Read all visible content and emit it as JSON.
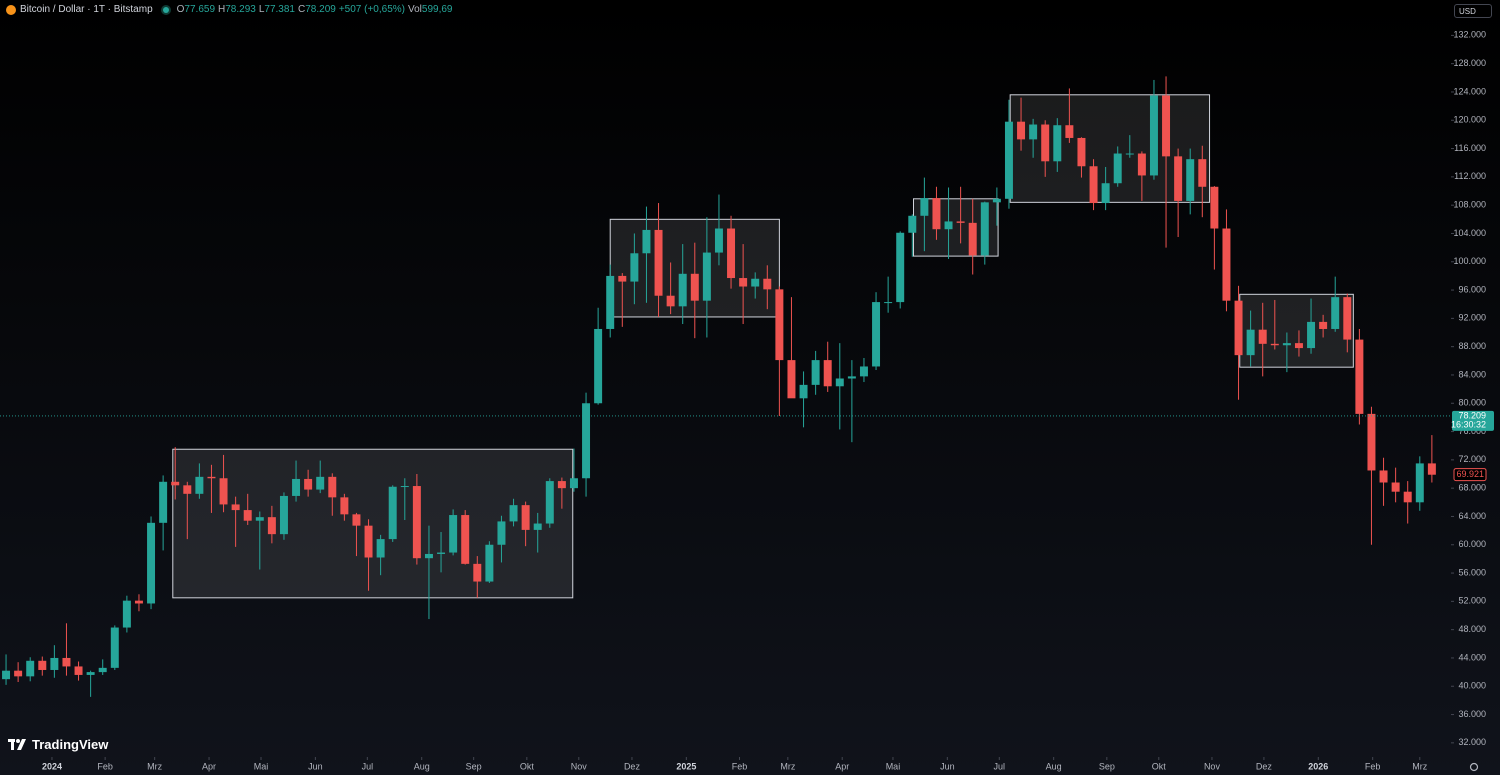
{
  "header": {
    "symbol": "Bitcoin / Dollar · 1T · Bitstamp",
    "quote": [
      {
        "key": "O",
        "value": "77.659"
      },
      {
        "key": "H",
        "value": "78.293"
      },
      {
        "key": "L",
        "value": "77.381"
      },
      {
        "key": "C",
        "value": "78.209"
      },
      {
        "key": "",
        "value": "+507 (+0,65%)"
      },
      {
        "key": "Vol",
        "value": "599,69"
      }
    ],
    "currency": "USD",
    "brand": "TradingView"
  },
  "chart_data": {
    "type": "candlestick",
    "up_color": "#26a69a",
    "down_color": "#ef5350",
    "grid": false,
    "price_scale": "right",
    "xlim": [
      -0.5,
      119.5
    ],
    "ylim": [
      30000,
      137000
    ],
    "xticks": [
      {
        "value": 3.8,
        "label": "2024"
      },
      {
        "value": 8.2,
        "label": "Feb"
      },
      {
        "value": 12.3,
        "label": "Mrz"
      },
      {
        "value": 16.8,
        "label": "Apr"
      },
      {
        "value": 21.1,
        "label": "Mai"
      },
      {
        "value": 25.6,
        "label": "Jun"
      },
      {
        "value": 29.9,
        "label": "Jul"
      },
      {
        "value": 34.4,
        "label": "Aug"
      },
      {
        "value": 38.7,
        "label": "Sep"
      },
      {
        "value": 43.1,
        "label": "Okt"
      },
      {
        "value": 47.4,
        "label": "Nov"
      },
      {
        "value": 51.8,
        "label": "Dez"
      },
      {
        "value": 56.3,
        "label": "2025"
      },
      {
        "value": 60.7,
        "label": "Feb"
      },
      {
        "value": 64.7,
        "label": "Mrz"
      },
      {
        "value": 69.2,
        "label": "Apr"
      },
      {
        "value": 73.4,
        "label": "Mai"
      },
      {
        "value": 77.9,
        "label": "Jun"
      },
      {
        "value": 82.2,
        "label": "Jul"
      },
      {
        "value": 86.7,
        "label": "Aug"
      },
      {
        "value": 91.1,
        "label": "Sep"
      },
      {
        "value": 95.4,
        "label": "Okt"
      },
      {
        "value": 99.8,
        "label": "Nov"
      },
      {
        "value": 104.1,
        "label": "Dez"
      },
      {
        "value": 108.6,
        "label": "2026"
      },
      {
        "value": 113.1,
        "label": "Feb"
      },
      {
        "value": 117.0,
        "label": "Mrz"
      }
    ],
    "yticks": [
      {
        "value": 32000,
        "label": "32.000"
      },
      {
        "value": 36000,
        "label": "36.000"
      },
      {
        "value": 40000,
        "label": "40.000"
      },
      {
        "value": 44000,
        "label": "44.000"
      },
      {
        "value": 48000,
        "label": "48.000"
      },
      {
        "value": 52000,
        "label": "52.000"
      },
      {
        "value": 56000,
        "label": "56.000"
      },
      {
        "value": 60000,
        "label": "60.000"
      },
      {
        "value": 64000,
        "label": "64.000"
      },
      {
        "value": 68000,
        "label": "68.000"
      },
      {
        "value": 72000,
        "label": "72.000"
      },
      {
        "value": 76000,
        "label": "76.000"
      },
      {
        "value": 80000,
        "label": "80.000"
      },
      {
        "value": 84000,
        "label": "84.000"
      },
      {
        "value": 88000,
        "label": "88.000"
      },
      {
        "value": 92000,
        "label": "92.000"
      },
      {
        "value": 96000,
        "label": "96.000"
      },
      {
        "value": 100000,
        "label": "100.000"
      },
      {
        "value": 104000,
        "label": "104.000"
      },
      {
        "value": 108000,
        "label": "108.000"
      },
      {
        "value": 112000,
        "label": "112.000"
      },
      {
        "value": 116000,
        "label": "116.000"
      },
      {
        "value": 120000,
        "label": "120.000"
      },
      {
        "value": 124000,
        "label": "124.000"
      },
      {
        "value": 128000,
        "label": "128.000"
      },
      {
        "value": 132000,
        "label": "132.000"
      }
    ],
    "open": [
      41000,
      42200,
      41400,
      43600,
      42300,
      44000,
      42800,
      41600,
      42000,
      42600,
      48300,
      52100,
      51700,
      63100,
      68900,
      68400,
      67200,
      69600,
      69400,
      65700,
      64900,
      63400,
      63900,
      61500,
      66900,
      69300,
      67800,
      69600,
      66700,
      64300,
      62700,
      58200,
      60800,
      68200,
      68300,
      58100,
      58700,
      58900,
      64200,
      57300,
      54800,
      60000,
      63300,
      65600,
      62100,
      63000,
      69000,
      68000,
      69400,
      80000,
      90500,
      98000,
      97200,
      101200,
      104500,
      95200,
      93700,
      98300,
      94500,
      101300,
      104700,
      97700,
      96500,
      97600,
      96100,
      86100,
      80700,
      82600,
      86100,
      82400,
      83500,
      83800,
      85200,
      94300,
      94300,
      104100,
      106500,
      109000,
      104600,
      105700,
      105500,
      100900,
      108400,
      108900,
      119800,
      117300,
      119400,
      114200,
      119300,
      117500,
      113500,
      108300,
      111100,
      115300,
      115300,
      112200,
      123500,
      114900,
      108600,
      114500,
      110600,
      104700,
      94500,
      86800,
      90400,
      88400,
      88200,
      88500,
      87800,
      91500,
      90500,
      95000,
      89000,
      78500,
      70500,
      68800,
      67500,
      66000,
      71500
    ],
    "high": [
      44500,
      43400,
      44100,
      44200,
      45800,
      48900,
      43500,
      42200,
      43800,
      48600,
      52800,
      53000,
      64000,
      69800,
      73800,
      68900,
      71500,
      71300,
      72700,
      66800,
      67200,
      64700,
      65500,
      67400,
      71900,
      70600,
      71900,
      70100,
      67200,
      64500,
      63600,
      61400,
      68400,
      69400,
      70000,
      62700,
      61800,
      65000,
      64900,
      58400,
      60500,
      64100,
      66500,
      66100,
      64500,
      69400,
      69500,
      73600,
      81500,
      93500,
      99600,
      98400,
      104000,
      107800,
      108300,
      99900,
      102500,
      102700,
      106300,
      109500,
      106500,
      102500,
      98500,
      99500,
      96500,
      95000,
      84500,
      87400,
      88700,
      88500,
      86100,
      86400,
      95700,
      97900,
      104300,
      106700,
      111900,
      110600,
      110500,
      110600,
      108900,
      108500,
      110500,
      122900,
      123200,
      120200,
      120000,
      120300,
      124500,
      117600,
      114500,
      113400,
      116300,
      117900,
      115600,
      125700,
      126200,
      116000,
      116000,
      116400,
      110700,
      107400,
      96600,
      93100,
      94200,
      94600,
      90000,
      90300,
      94800,
      92500,
      97900,
      95500,
      90500,
      79500,
      72300,
      70900,
      69000,
      72500,
      75500
    ],
    "low": [
      40200,
      40600,
      40700,
      41500,
      41200,
      41500,
      40800,
      38500,
      41600,
      42300,
      47600,
      50600,
      50900,
      59200,
      66400,
      60800,
      66500,
      64500,
      64600,
      59700,
      62800,
      56500,
      60200,
      60700,
      66100,
      66800,
      67300,
      64100,
      63400,
      58400,
      53500,
      55700,
      60400,
      63500,
      57200,
      49500,
      56100,
      58500,
      57200,
      52500,
      54600,
      57500,
      62600,
      59800,
      58900,
      62400,
      65100,
      67500,
      66800,
      79800,
      89300,
      90800,
      94000,
      94200,
      92200,
      92600,
      91200,
      89200,
      89300,
      99500,
      96200,
      91200,
      94800,
      93300,
      78200,
      81500,
      76600,
      81200,
      81600,
      76300,
      74500,
      83000,
      84700,
      92800,
      93400,
      100700,
      101500,
      103100,
      100400,
      102600,
      98200,
      99600,
      105100,
      107500,
      115700,
      114700,
      112000,
      112700,
      116800,
      111900,
      107300,
      107300,
      110600,
      114700,
      108600,
      111600,
      102000,
      103500,
      106700,
      106300,
      98900,
      93000,
      80500,
      85200,
      83800,
      87600,
      84400,
      86600,
      87000,
      89300,
      90100,
      87200,
      77000,
      60000,
      65500,
      66000,
      63000,
      64800,
      68800
    ],
    "close": [
      42200,
      41400,
      43600,
      42300,
      44000,
      42800,
      41600,
      42000,
      42600,
      48300,
      52100,
      51700,
      63100,
      68900,
      68400,
      67200,
      69600,
      69400,
      65700,
      64900,
      63400,
      63900,
      61500,
      66900,
      69300,
      67800,
      69600,
      66700,
      64300,
      62700,
      58200,
      60800,
      68200,
      68300,
      58100,
      58700,
      58900,
      64200,
      57300,
      54800,
      60000,
      63300,
      65600,
      62100,
      63000,
      69000,
      68000,
      69400,
      80000,
      90500,
      98000,
      97200,
      101200,
      104500,
      95200,
      93700,
      98300,
      94500,
      101300,
      104700,
      97700,
      96500,
      97600,
      96100,
      86100,
      80700,
      82600,
      86100,
      82400,
      83500,
      83800,
      85200,
      94300,
      94300,
      104100,
      106500,
      109000,
      104600,
      105700,
      105500,
      100900,
      108400,
      108900,
      119800,
      117300,
      119400,
      114200,
      119300,
      117500,
      113500,
      108300,
      111100,
      115300,
      115300,
      112200,
      123500,
      114900,
      108600,
      114500,
      110600,
      104700,
      94500,
      86800,
      90400,
      88400,
      88200,
      88500,
      87800,
      91500,
      90500,
      95000,
      89000,
      78500,
      70500,
      68800,
      67500,
      66000,
      71500,
      69900
    ],
    "ranges": [
      {
        "x_start": 13.8,
        "x_end": 46.9,
        "low": 52500,
        "high": 73500
      },
      {
        "x_start": 50.0,
        "x_end": 64.0,
        "low": 92200,
        "high": 106000
      },
      {
        "x_start": 75.1,
        "x_end": 82.1,
        "low": 100800,
        "high": 108900
      },
      {
        "x_start": 83.1,
        "x_end": 99.6,
        "low": 108400,
        "high": 123600
      },
      {
        "x_start": 102.1,
        "x_end": 111.5,
        "low": 85100,
        "high": 95400
      }
    ],
    "last_price": {
      "value": 78209,
      "label": "78.209"
    },
    "countdown": "16:30:32",
    "bar_close": {
      "value": 69921,
      "label": "69.921"
    }
  }
}
